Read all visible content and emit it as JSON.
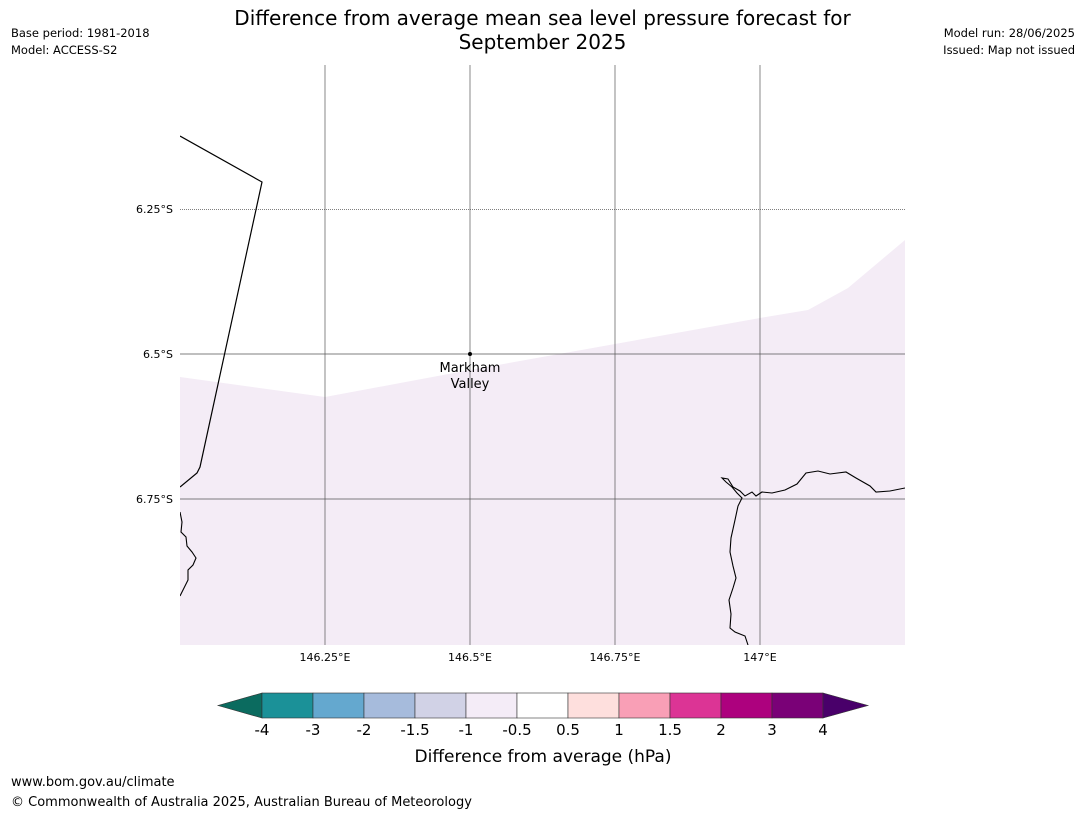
{
  "header": {
    "title_line1": "Difference from average mean sea level pressure forecast for",
    "title_line2": "September 2025",
    "base_period": "Base period: 1981-2018",
    "model": "Model: ACCESS-S2",
    "model_run": "Model run: 28/06/2025",
    "issued": "Issued: Map not issued"
  },
  "map": {
    "lon_labels": [
      "146.25°E",
      "146.5°E",
      "146.75°E",
      "147°E"
    ],
    "lat_labels": [
      "6.25°S",
      "6.5°S",
      "6.75°S"
    ],
    "place": {
      "name_line1": "Markham",
      "name_line2": "Valley"
    },
    "shaded_category": "-0.5 to -1 hPa"
  },
  "colorbar": {
    "title": "Difference from average (hPa)",
    "tick_labels": [
      "-4",
      "-3",
      "-2",
      "-1.5",
      "-1",
      "-0.5",
      "0.5",
      "1",
      "1.5",
      "2",
      "3",
      "4"
    ],
    "colors": {
      "below_min": "#0b6b5f",
      "bins": [
        "#1b9198",
        "#64a8cf",
        "#a6bbdc",
        "#d1d2e6",
        "#f4ecf7",
        "#ffffff",
        "#fedfdd",
        "#f99fb6",
        "#dc3495",
        "#ad017e",
        "#7a0177"
      ],
      "above_max": "#49006a"
    }
  },
  "footer": {
    "url": "www.bom.gov.au/climate",
    "copyright": "© Commonwealth of Australia 2025, Australian Bureau of Meteorology"
  }
}
